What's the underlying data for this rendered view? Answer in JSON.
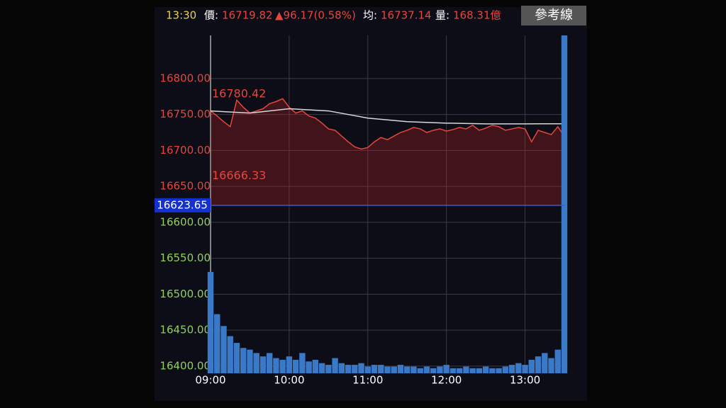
{
  "header": {
    "time": "13:30",
    "price_label": "價:",
    "price": "16719.82",
    "change": "▲96.17(0.58%)",
    "avg_label": "均:",
    "avg": "16737.14",
    "volume_label": "量:",
    "volume": "168.31億",
    "button": "參考線"
  },
  "chart_data": {
    "type": "line",
    "x": [
      0,
      5,
      10,
      15,
      20,
      25,
      30,
      35,
      40,
      45,
      50,
      55,
      60,
      65,
      70,
      75,
      80,
      85,
      90,
      95,
      100,
      105,
      110,
      115,
      120,
      125,
      130,
      135,
      140,
      145,
      150,
      155,
      160,
      165,
      170,
      175,
      180,
      185,
      190,
      195,
      200,
      205,
      210,
      215,
      220,
      225,
      230,
      235,
      240,
      245,
      250,
      255,
      260,
      265,
      270
    ],
    "xlim": [
      0,
      270
    ],
    "xticks": [
      {
        "value": 0,
        "label": "09:00"
      },
      {
        "value": 60,
        "label": "10:00"
      },
      {
        "value": 120,
        "label": "11:00"
      },
      {
        "value": 180,
        "label": "12:00"
      },
      {
        "value": 240,
        "label": "13:00"
      }
    ],
    "ylim": [
      16390,
      16860
    ],
    "yticks": [
      {
        "value": 16400,
        "label": "16400.00"
      },
      {
        "value": 16450,
        "label": "16450.00"
      },
      {
        "value": 16500,
        "label": "16500.00"
      },
      {
        "value": 16550,
        "label": "16550.00"
      },
      {
        "value": 16600,
        "label": "16600.00"
      },
      {
        "value": 16650,
        "label": "16650.00"
      },
      {
        "value": 16700,
        "label": "16700.00"
      },
      {
        "value": 16750,
        "label": "16750.00"
      },
      {
        "value": 16800,
        "label": "16800.00"
      }
    ],
    "y2lim": [
      0,
      200
    ],
    "reference": 16623.65,
    "annotations": [
      16780.42,
      16666.33
    ],
    "grid": true,
    "series": [
      {
        "color": "#e8453c",
        "values": [
          16755,
          16748,
          16740,
          16733,
          16770,
          16760,
          16752,
          16755,
          16758,
          16765,
          16768,
          16772,
          16760,
          16752,
          16755,
          16748,
          16745,
          16738,
          16730,
          16728,
          16720,
          16712,
          16705,
          16702,
          16704,
          16712,
          16718,
          16715,
          16720,
          16725,
          16728,
          16732,
          16730,
          16725,
          16728,
          16730,
          16727,
          16729,
          16732,
          16730,
          16735,
          16728,
          16731,
          16735,
          16733,
          16728,
          16730,
          16732,
          16730,
          16712,
          16728,
          16725,
          16722,
          16733,
          16719.82
        ]
      },
      {
        "color": "#d8d8d8",
        "x": [
          0,
          30,
          60,
          90,
          120,
          150,
          180,
          210,
          240,
          270
        ],
        "values": [
          16755,
          16752,
          16758,
          16755,
          16745,
          16740,
          16738,
          16737,
          16737,
          16737.14
        ]
      },
      {
        "color": "#3a78c8",
        "axis": "y2",
        "values": [
          60,
          35,
          28,
          22,
          18,
          15,
          14,
          12,
          10,
          12,
          9,
          8,
          10,
          8,
          12,
          7,
          8,
          6,
          5,
          9,
          6,
          5,
          5,
          6,
          4,
          5,
          5,
          4,
          4,
          5,
          4,
          4,
          3,
          4,
          3,
          4,
          5,
          3,
          3,
          4,
          3,
          3,
          4,
          3,
          3,
          4,
          5,
          6,
          5,
          8,
          10,
          12,
          9,
          14,
          200
        ]
      }
    ]
  }
}
